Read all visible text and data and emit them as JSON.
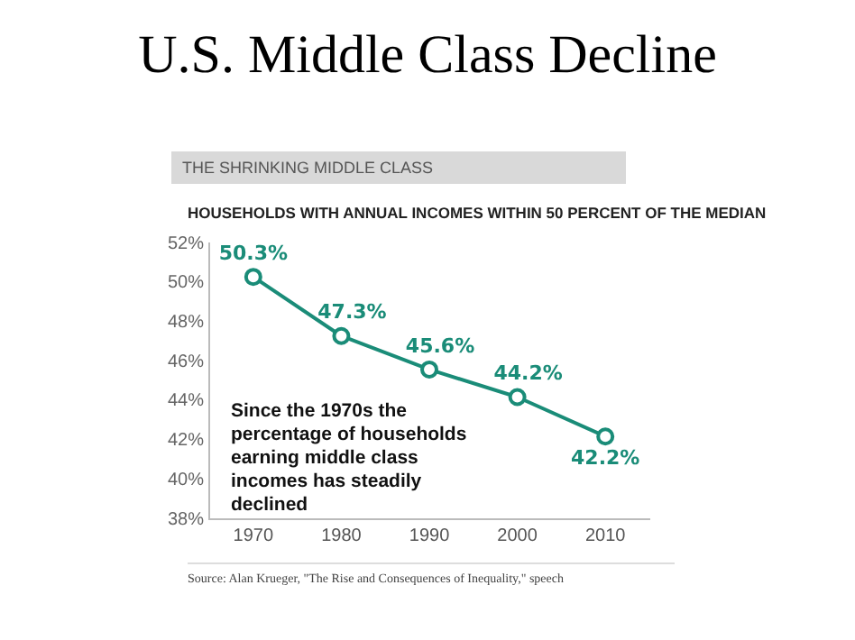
{
  "chart_data": {
    "type": "line",
    "title": "U.S. Middle Class Decline",
    "subtitle": "THE SHRINKING MIDDLE CLASS",
    "ylabel": "HOUSEHOLDS WITH ANNUAL INCOMES WITHIN 50 PERCENT OF THE MEDIAN",
    "x": [
      1970,
      1980,
      1990,
      2000,
      2010
    ],
    "series": [
      {
        "color": "#1a8c78",
        "values": [
          50.3,
          47.3,
          45.6,
          44.2,
          42.2
        ],
        "value_labels": [
          "50.3%",
          "47.3%",
          "45.6%",
          "44.2%",
          "42.2%"
        ]
      }
    ],
    "xlim": [
      1965,
      2015
    ],
    "xticks": [
      1970,
      1980,
      1990,
      2000,
      2010
    ],
    "ylim": [
      38,
      52
    ],
    "yticks": [
      {
        "value": 38,
        "label": "38%"
      },
      {
        "value": 40,
        "label": "40%"
      },
      {
        "value": 42,
        "label": "42%"
      },
      {
        "value": 44,
        "label": "44%"
      },
      {
        "value": 46,
        "label": "46%"
      },
      {
        "value": 48,
        "label": "48%"
      },
      {
        "value": 50,
        "label": "50%"
      },
      {
        "value": 52,
        "label": "52%"
      }
    ],
    "marker": "circle",
    "line_style": "solid",
    "grid": false,
    "legend": false,
    "annotations": [
      "Since the 1970s the percentage of households earning middle class incomes has steadily declined",
      "Source: Alan Krueger, \"The Rise and Consequences of Inequality,\" speech"
    ]
  }
}
